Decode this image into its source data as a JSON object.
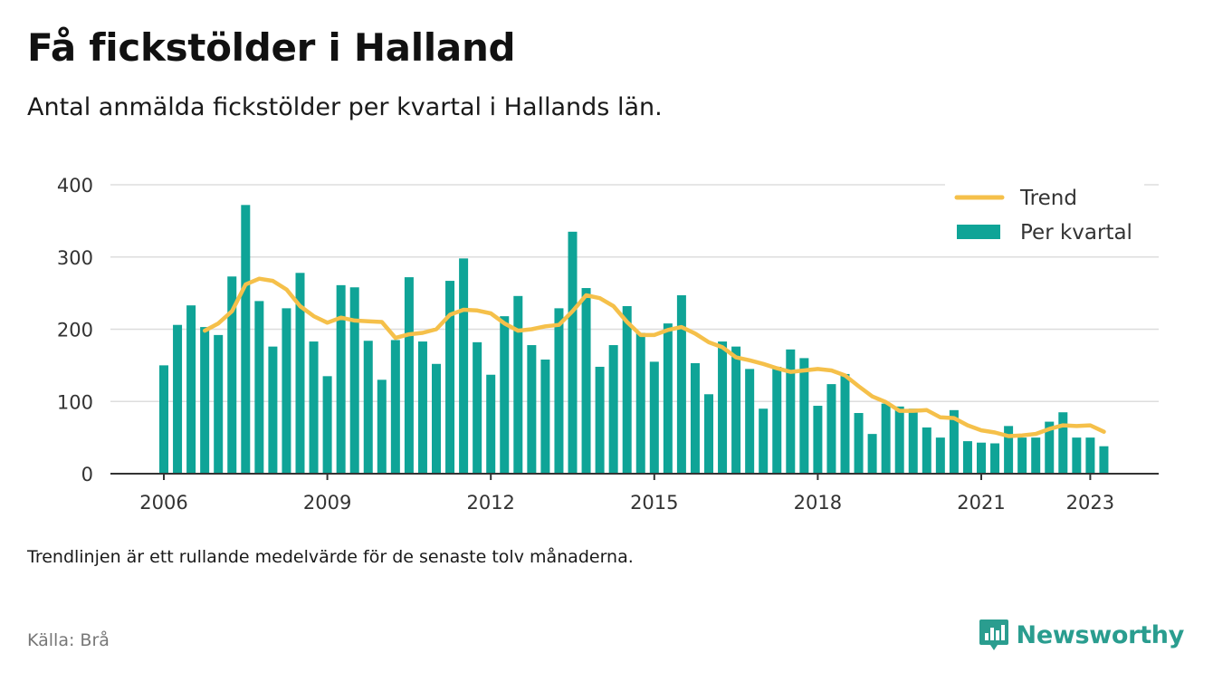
{
  "title": "Få fickstölder i Halland",
  "subtitle": "Antal anmälda fickstölder per kvartal i Hallands län.",
  "footnote": "Trendlinjen är ett rullande medelvärde för de senaste tolv månaderna.",
  "source": "Källa: Brå",
  "brand": "Newsworthy",
  "colors": {
    "bar": "#0fa497",
    "trend": "#f5c04a",
    "brand": "#2a9d8f",
    "grid": "#dddddd",
    "axis": "#333333"
  },
  "chart_data": {
    "type": "bar",
    "title": "",
    "xlabel": "",
    "ylabel": "",
    "ylim": [
      0,
      400
    ],
    "yticks": [
      0,
      100,
      200,
      300,
      400
    ],
    "xticks": [
      "2006",
      "2009",
      "2012",
      "2015",
      "2018",
      "2021",
      "2023"
    ],
    "grid": true,
    "legend_position": "top-right",
    "legend": [
      {
        "name": "Trend",
        "kind": "line"
      },
      {
        "name": "Per kvartal",
        "kind": "bar"
      }
    ],
    "x": [
      "2006 Q1",
      "2006 Q2",
      "2006 Q3",
      "2006 Q4",
      "2007 Q1",
      "2007 Q2",
      "2007 Q3",
      "2007 Q4",
      "2008 Q1",
      "2008 Q2",
      "2008 Q3",
      "2008 Q4",
      "2009 Q1",
      "2009 Q2",
      "2009 Q3",
      "2009 Q4",
      "2010 Q1",
      "2010 Q2",
      "2010 Q3",
      "2010 Q4",
      "2011 Q1",
      "2011 Q2",
      "2011 Q3",
      "2011 Q4",
      "2012 Q1",
      "2012 Q2",
      "2012 Q3",
      "2012 Q4",
      "2013 Q1",
      "2013 Q2",
      "2013 Q3",
      "2013 Q4",
      "2014 Q1",
      "2014 Q2",
      "2014 Q3",
      "2014 Q4",
      "2015 Q1",
      "2015 Q2",
      "2015 Q3",
      "2015 Q4",
      "2016 Q1",
      "2016 Q2",
      "2016 Q3",
      "2016 Q4",
      "2017 Q1",
      "2017 Q2",
      "2017 Q3",
      "2017 Q4",
      "2018 Q1",
      "2018 Q2",
      "2018 Q3",
      "2018 Q4",
      "2019 Q1",
      "2019 Q2",
      "2019 Q3",
      "2019 Q4",
      "2020 Q1",
      "2020 Q2",
      "2020 Q3",
      "2020 Q4",
      "2021 Q1",
      "2021 Q2",
      "2021 Q3",
      "2021 Q4",
      "2022 Q1",
      "2022 Q2",
      "2022 Q3",
      "2022 Q4",
      "2023 Q1",
      "2023 Q2"
    ],
    "series": [
      {
        "name": "Per kvartal",
        "type": "bar",
        "values": [
          150,
          206,
          233,
          203,
          192,
          273,
          372,
          239,
          176,
          229,
          278,
          183,
          135,
          261,
          258,
          184,
          130,
          185,
          272,
          183,
          152,
          267,
          298,
          182,
          137,
          218,
          246,
          178,
          158,
          229,
          335,
          257,
          148,
          178,
          232,
          195,
          155,
          208,
          247,
          153,
          110,
          183,
          176,
          145,
          90,
          148,
          172,
          160,
          94,
          124,
          138,
          84,
          55,
          97,
          93,
          90,
          64,
          50,
          88,
          45,
          43,
          42,
          66,
          50,
          50,
          72,
          85,
          50,
          50,
          38
        ]
      },
      {
        "name": "Trend",
        "type": "line",
        "values": [
          null,
          null,
          null,
          198,
          208,
          225,
          262,
          270,
          267,
          255,
          232,
          218,
          209,
          216,
          212,
          211,
          210,
          188,
          193,
          195,
          200,
          220,
          227,
          226,
          222,
          208,
          198,
          200,
          204,
          206,
          225,
          247,
          243,
          232,
          210,
          192,
          192,
          199,
          203,
          194,
          182,
          175,
          161,
          157,
          152,
          146,
          141,
          143,
          145,
          143,
          136,
          121,
          107,
          99,
          87,
          87,
          88,
          78,
          77,
          67,
          60,
          57,
          52,
          53,
          55,
          62,
          67,
          66,
          67,
          58
        ]
      }
    ]
  }
}
